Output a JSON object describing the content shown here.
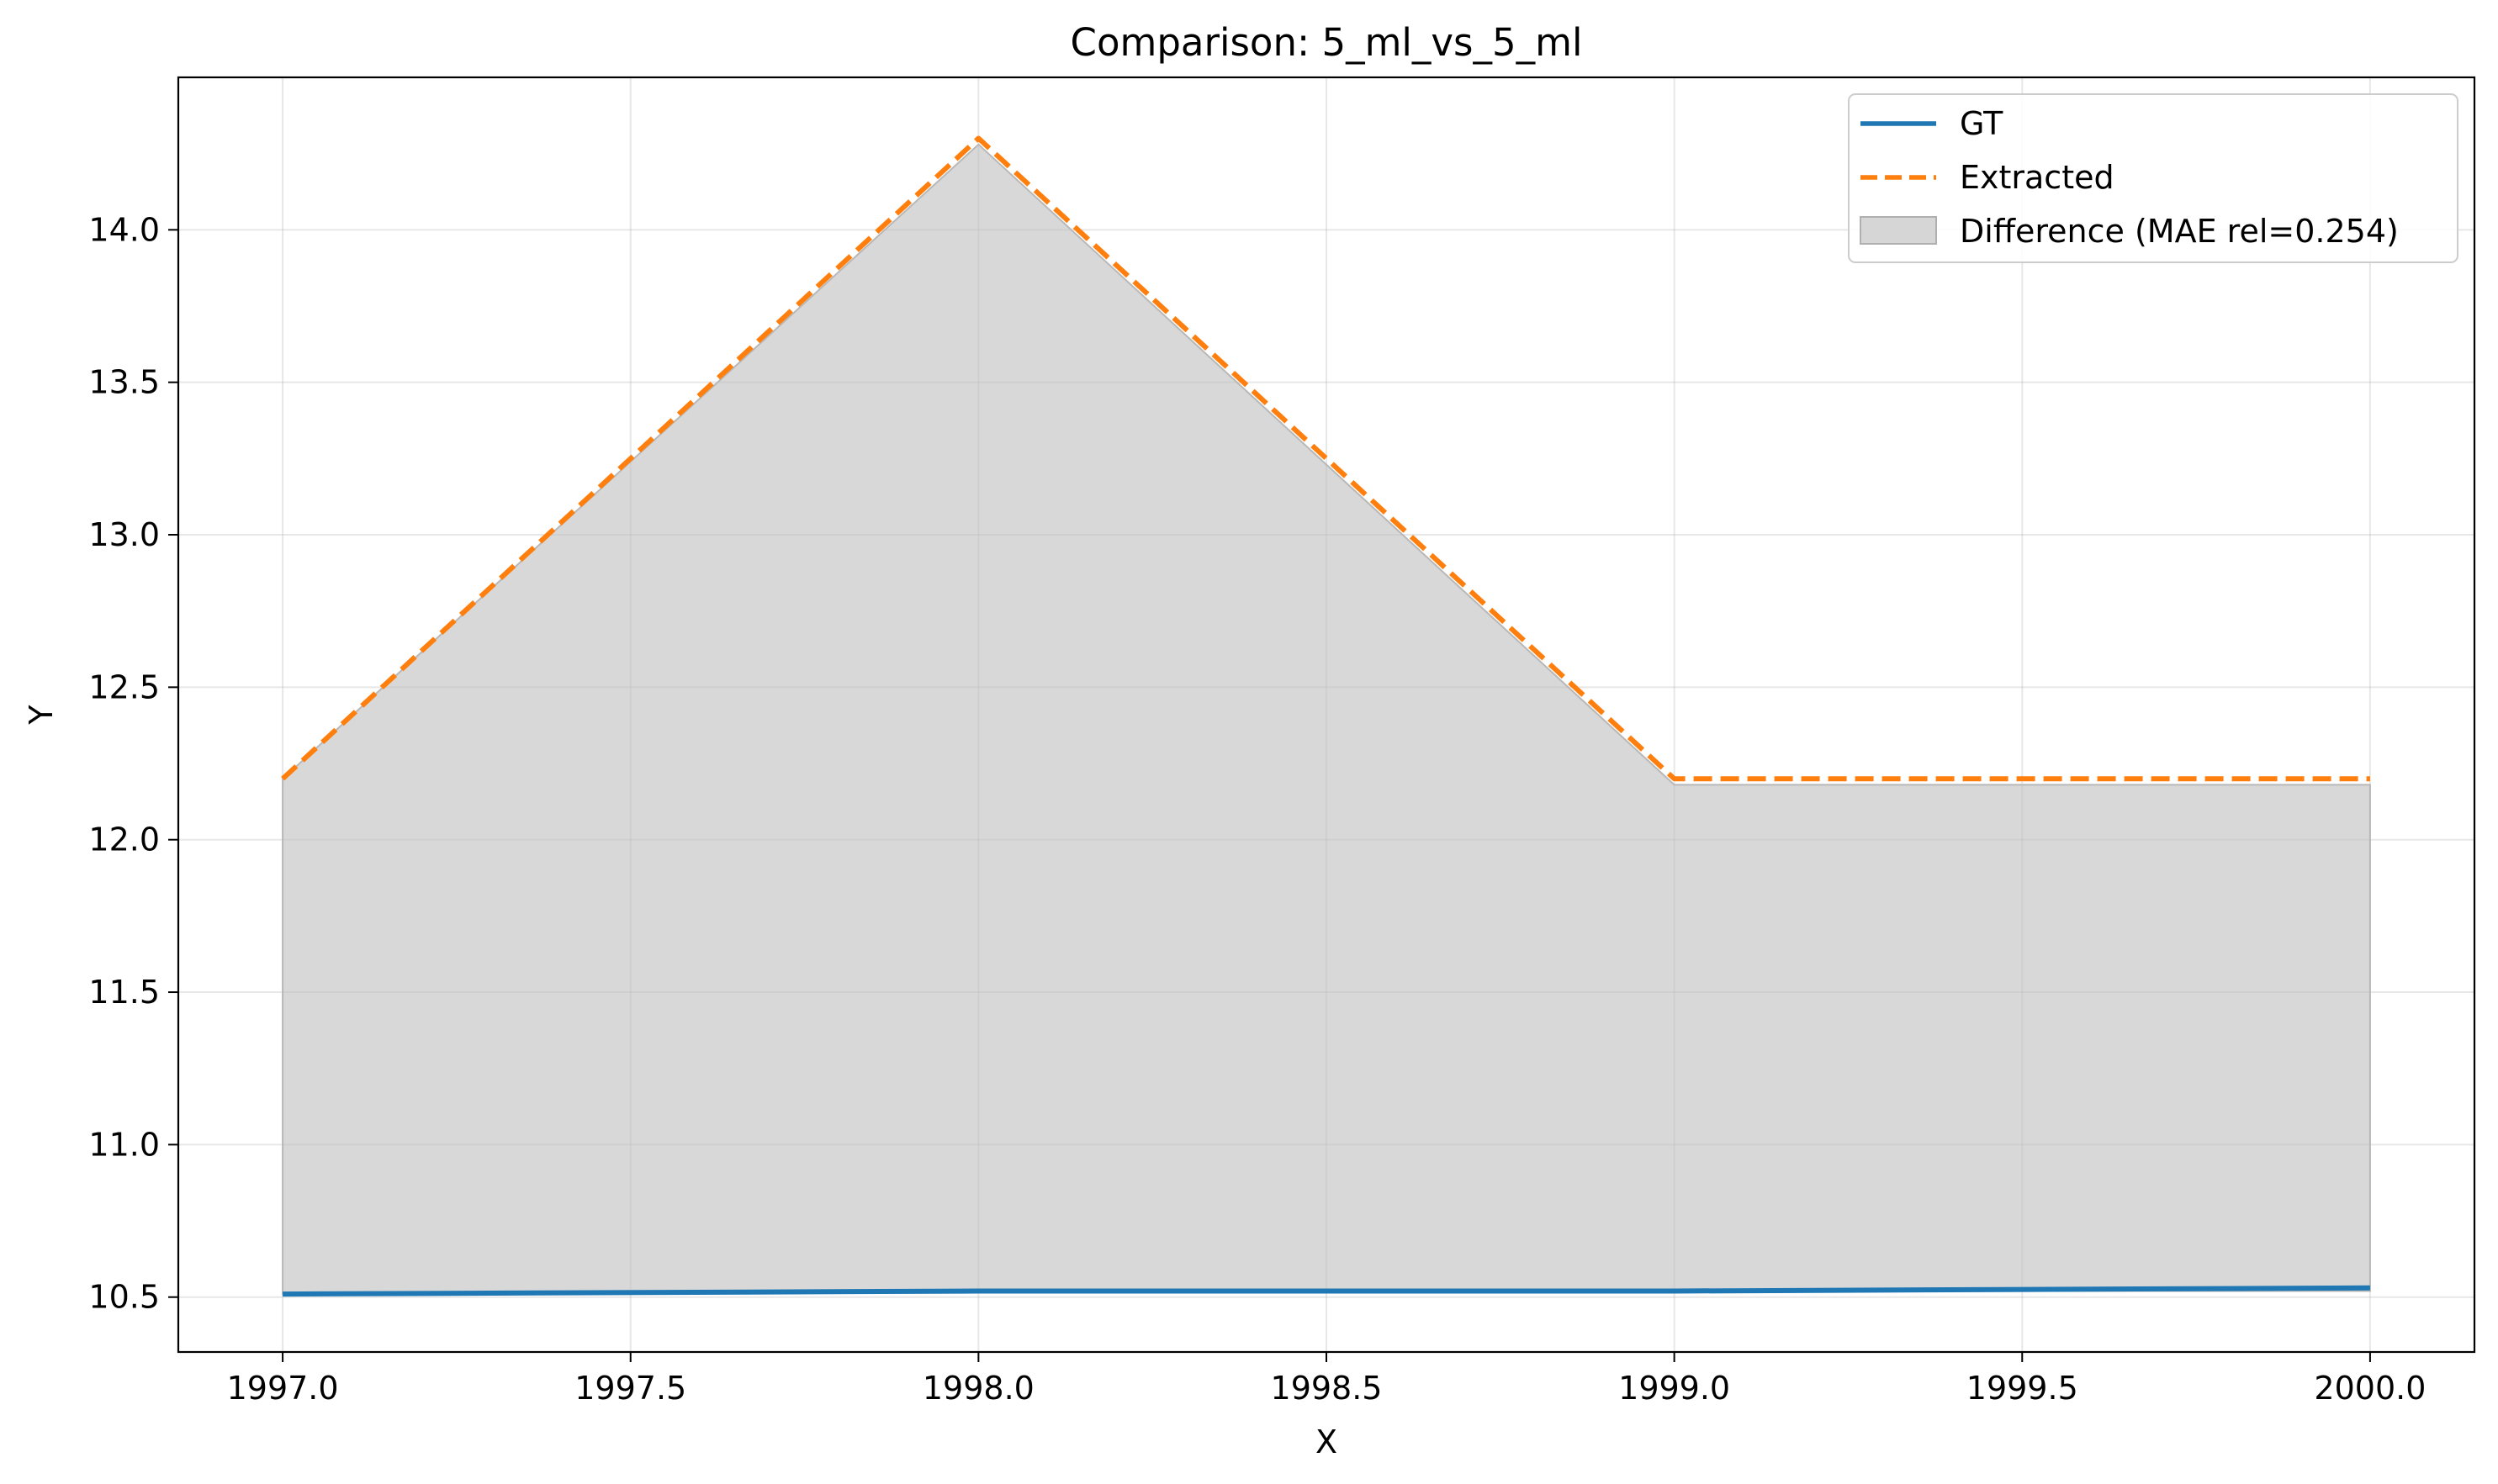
{
  "chart_data": {
    "type": "line",
    "title": "Comparison: 5_ml_vs_5_ml",
    "xlabel": "X",
    "ylabel": "Y",
    "xlim": [
      1996.85,
      2000.15
    ],
    "ylim": [
      10.32,
      14.5
    ],
    "xticks": [
      1997.0,
      1997.5,
      1998.0,
      1998.5,
      1999.0,
      1999.5,
      2000.0
    ],
    "xtick_labels": [
      "1997.0",
      "1997.5",
      "1998.0",
      "1998.5",
      "1999.0",
      "1999.5",
      "2000.0"
    ],
    "yticks": [
      10.5,
      11.0,
      11.5,
      12.0,
      12.5,
      13.0,
      13.5,
      14.0
    ],
    "ytick_labels": [
      "10.5",
      "11.0",
      "11.5",
      "12.0",
      "12.5",
      "13.0",
      "13.5",
      "14.0"
    ],
    "grid": true,
    "legend_position": "top-right",
    "series": [
      {
        "name": "GT",
        "style": "solid",
        "color": "#1f77b4",
        "x": [
          1997,
          1998,
          1999,
          2000
        ],
        "y": [
          10.51,
          10.52,
          10.52,
          10.53
        ]
      },
      {
        "name": "Extracted",
        "style": "dashed",
        "color": "#ff7f0e",
        "x": [
          1997,
          1998,
          1999,
          2000
        ],
        "y": [
          12.2,
          14.3,
          12.2,
          12.2
        ]
      }
    ],
    "fill": {
      "name": "Difference (MAE rel=0.254)",
      "color": "#c0c0c0",
      "x": [
        1997,
        1998,
        1999,
        2000
      ],
      "upper": [
        12.2,
        14.28,
        12.18,
        12.18
      ],
      "lower": [
        10.51,
        10.52,
        10.52,
        10.52
      ]
    }
  }
}
